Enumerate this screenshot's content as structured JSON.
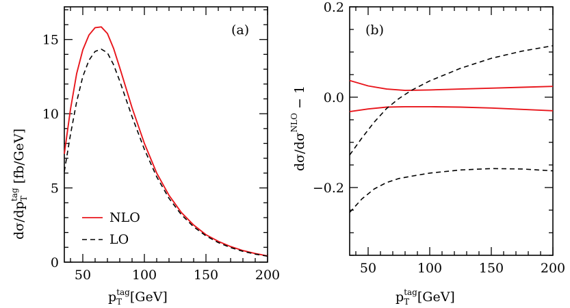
{
  "chart_data": [
    {
      "type": "line",
      "panel_label": "(a)",
      "xlabel": "p_T^tag [GeV]",
      "ylabel": "dσ/dp_T^tag [fb/GeV]",
      "xlim": [
        35,
        200
      ],
      "ylim": [
        0,
        17.2
      ],
      "xticks": [
        50,
        100,
        150,
        200
      ],
      "yticks": [
        0,
        5,
        10,
        15
      ],
      "legend_position": "bottom-left",
      "series": [
        {
          "name": "NLO",
          "color": "#e8151b",
          "dash": "solid",
          "in_legend": true,
          "x": [
            35,
            40,
            45,
            50,
            55,
            60,
            65,
            70,
            75,
            80,
            90,
            100,
            110,
            120,
            130,
            140,
            150,
            160,
            170,
            180,
            190,
            200
          ],
          "y": [
            7.3,
            10.3,
            12.7,
            14.3,
            15.3,
            15.8,
            15.85,
            15.4,
            14.4,
            13.1,
            10.4,
            8.0,
            6.0,
            4.5,
            3.35,
            2.5,
            1.85,
            1.4,
            1.05,
            0.78,
            0.58,
            0.42
          ]
        },
        {
          "name": "LO",
          "color": "#000000",
          "dash": "dashed",
          "in_legend": true,
          "x": [
            35,
            40,
            45,
            50,
            55,
            60,
            65,
            70,
            75,
            80,
            90,
            100,
            110,
            120,
            130,
            140,
            150,
            160,
            170,
            180,
            190,
            200
          ],
          "y": [
            6.1,
            8.6,
            10.8,
            12.5,
            13.6,
            14.2,
            14.35,
            14.1,
            13.3,
            12.2,
            9.8,
            7.6,
            5.75,
            4.3,
            3.2,
            2.38,
            1.77,
            1.32,
            0.98,
            0.73,
            0.54,
            0.4
          ]
        }
      ]
    },
    {
      "type": "line",
      "panel_label": "(b)",
      "xlabel": "p_T^tag [GeV]",
      "ylabel": "dσ/dσ^NLO − 1",
      "xlim": [
        35,
        200
      ],
      "ylim": [
        -0.35,
        0.2
      ],
      "xticks": [
        50,
        100,
        150,
        200
      ],
      "yticks": [
        -0.2,
        0.0,
        0.2
      ],
      "yticklabels": [
        "−0.2",
        "0.0",
        "0.2"
      ],
      "series": [
        {
          "color": "#e8151b",
          "dash": "solid",
          "x": [
            35,
            50,
            65,
            80,
            100,
            125,
            150,
            175,
            200
          ],
          "y": [
            0.037,
            0.025,
            0.018,
            0.015,
            0.016,
            0.018,
            0.02,
            0.022,
            0.024
          ]
        },
        {
          "color": "#e8151b",
          "dash": "solid",
          "x": [
            35,
            50,
            65,
            80,
            100,
            125,
            150,
            175,
            200
          ],
          "y": [
            -0.032,
            -0.026,
            -0.022,
            -0.021,
            -0.021,
            -0.022,
            -0.024,
            -0.027,
            -0.03
          ]
        },
        {
          "color": "#000000",
          "dash": "dashed",
          "x": [
            35,
            45,
            55,
            65,
            75,
            85,
            100,
            125,
            150,
            175,
            200
          ],
          "y": [
            -0.128,
            -0.09,
            -0.055,
            -0.025,
            -0.003,
            0.015,
            0.036,
            0.064,
            0.086,
            0.102,
            0.114
          ]
        },
        {
          "color": "#000000",
          "dash": "dashed",
          "x": [
            35,
            45,
            55,
            65,
            75,
            85,
            100,
            125,
            150,
            175,
            200
          ],
          "y": [
            -0.255,
            -0.225,
            -0.203,
            -0.189,
            -0.18,
            -0.175,
            -0.168,
            -0.161,
            -0.158,
            -0.159,
            -0.163
          ]
        }
      ]
    }
  ]
}
